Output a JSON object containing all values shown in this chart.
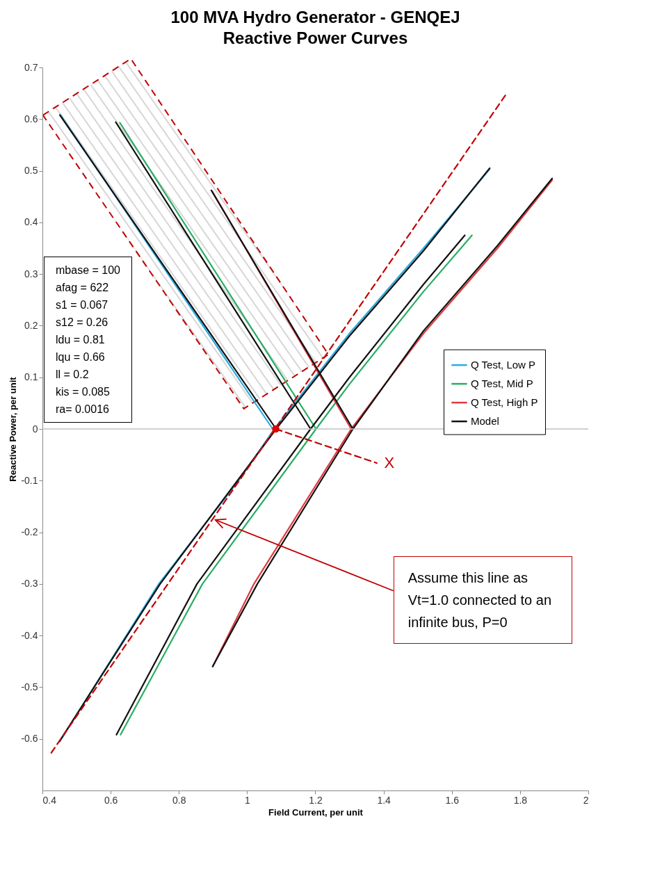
{
  "chart_data": {
    "type": "line",
    "title": "100 MVA Hydro Generator - GENQEJ",
    "subtitle": "Reactive Power Curves",
    "xlabel": "Field Current, per unit",
    "ylabel": "Reactive Power, per unit",
    "xlim": [
      0.4,
      2
    ],
    "xticks": [
      0.4,
      0.6,
      0.8,
      1,
      1.2,
      1.4,
      1.6,
      1.8,
      2
    ],
    "ylim": [
      -0.7,
      0.7
    ],
    "yticks": [
      -0.6,
      -0.5,
      -0.4,
      -0.3,
      -0.2,
      -0.1,
      0,
      0.1,
      0.2,
      0.3,
      0.4,
      0.5,
      0.6,
      0.7
    ],
    "grid": false,
    "legend": "right",
    "line_style": "solid",
    "series": [
      {
        "name": "Q Test, Low P",
        "color": "#29abe2",
        "x": [
          0.453,
          1.075,
          null,
          0.451,
          0.741,
          0.975,
          1.08,
          1.3,
          1.517,
          1.711
        ],
        "values": [
          0.608,
          0,
          null,
          -0.605,
          -0.3,
          -0.1,
          0,
          0.185,
          0.35,
          0.503
        ]
      },
      {
        "name": "Q Test, Mid P",
        "color": "#27ae60",
        "x": [
          0.627,
          1.202,
          null,
          0.629,
          0.869,
          1.202,
          1.299,
          1.517,
          1.659
        ],
        "values": [
          0.593,
          0,
          null,
          -0.592,
          -0.3,
          0,
          0.086,
          0.266,
          0.375
        ]
      },
      {
        "name": "Q Test, High P",
        "color": "#e0393e",
        "x": [
          0.897,
          1.305,
          null,
          0.899,
          1.02,
          1.305,
          1.517,
          1.734,
          1.894
        ],
        "values": [
          0.461,
          0,
          null,
          -0.46,
          -0.3,
          0,
          0.185,
          0.35,
          0.482
        ]
      },
      {
        "name": "Model",
        "color": "#111111",
        "x": [
          0.451,
          1.085,
          null,
          0.45,
          0.745,
          1.085,
          1.3,
          1.517,
          1.711,
          null,
          0.615,
          1.186,
          null,
          0.617,
          0.853,
          1.186,
          1.3,
          1.517,
          1.638,
          null,
          0.895,
          1.31,
          null,
          0.899,
          1.03,
          1.31,
          1.517,
          1.734,
          1.894
        ],
        "values": [
          0.608,
          0,
          null,
          -0.605,
          -0.3,
          0,
          0.18,
          0.345,
          0.505,
          null,
          0.594,
          0,
          null,
          -0.592,
          -0.3,
          0,
          0.1,
          0.28,
          0.375,
          null,
          0.462,
          0,
          null,
          -0.46,
          -0.3,
          0,
          0.19,
          0.355,
          0.485
        ]
      },
      {
        "type": "line",
        "color": "#c00000",
        "line_style": "dashed",
        "x": [
          0.426,
          1.76
        ],
        "values": [
          -0.627,
          0.649
        ]
      },
      {
        "type": "line",
        "name": "X",
        "color": "#c00000",
        "line_style": "dashed",
        "x": [
          1.084,
          1.38
        ],
        "values": [
          0,
          -0.066
        ]
      },
      {
        "type": "scatter",
        "color": "#e00000",
        "marker": "circle",
        "x": [
          1.084
        ],
        "values": [
          0
        ]
      }
    ],
    "ref_lines": [
      {
        "axis": "y",
        "value": 0,
        "color": "#bfbfbf"
      }
    ],
    "annotations": [
      "mbase = 100",
      "afag = 622",
      "s1 = 0.067",
      "s12 = 0.26",
      "ldu = 0.81",
      "lqu = 0.66",
      "ll = 0.2",
      "kis = 0.085",
      "ra= 0.0016",
      {
        "text": "Assume this line as Vt=1.0 connected to an infinite bus, P=0",
        "x": 0.907,
        "y": -0.176
      }
    ]
  }
}
